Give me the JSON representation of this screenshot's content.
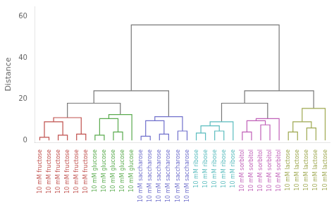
{
  "chart_data": {
    "type": "dendrogram",
    "ylabel": "Distance",
    "categories": [
      "10 mM fructose",
      "10 mM fructose",
      "10 mM fructose",
      "10 mM fructose",
      "10 mM fructose",
      "10 mM fructose",
      "10 mM glucose",
      "10 mM glucose",
      "10 mM glucose",
      "10 mM glucose",
      "10 mM glucose",
      "10 mM saccharose",
      "10 mM saccharose",
      "10 mM saccharose",
      "10 mM saccharose",
      "10 mM saccharose",
      "10 mM saccharose",
      "10 mM ribose",
      "10 mM ribose",
      "10 mM ribose",
      "10 mM ribose",
      "10 mM ribose",
      "10 mM sorbitol",
      "10 mM sorbitol",
      "10 mM sorbitol",
      "10 mM sorbitol",
      "10 mM sorbitol",
      "10 mM lactose",
      "10 mM lactose",
      "10 mM lactose",
      "10 mM lactose",
      "10 mM lactose"
    ],
    "colors": [
      "#c0504d",
      "#c0504d",
      "#c0504d",
      "#c0504d",
      "#c0504d",
      "#c0504d",
      "#5aab4e",
      "#5aab4e",
      "#5aab4e",
      "#5aab4e",
      "#5aab4e",
      "#7070cc",
      "#7070cc",
      "#7070cc",
      "#7070cc",
      "#7070cc",
      "#7070cc",
      "#5abcbe",
      "#5abcbe",
      "#5abcbe",
      "#5abcbe",
      "#5abcbe",
      "#c060b8",
      "#c060b8",
      "#c060b8",
      "#c060b8",
      "#c060b8",
      "#9ea850",
      "#9ea850",
      "#9ea850",
      "#9ea850",
      "#9ea850"
    ],
    "merges": [
      {
        "pair": [
          0,
          1
        ],
        "height": 1.5,
        "color": "#c0504d"
      },
      {
        "pair": [
          2,
          3
        ],
        "height": 2.5,
        "color": "#c0504d"
      },
      {
        "pair": [
          4,
          5
        ],
        "height": 3.0,
        "color": "#c0504d"
      },
      {
        "pair": [
          32,
          33
        ],
        "height": 9.0,
        "color": "#c0504d"
      },
      {
        "pair": [
          35,
          34
        ],
        "height": 11.0,
        "color": "#c0504d"
      },
      {
        "pair": [
          6,
          7
        ],
        "height": 2.5,
        "color": "#5aab4e"
      },
      {
        "pair": [
          8,
          9
        ],
        "height": 4.0,
        "color": "#5aab4e"
      },
      {
        "pair": [
          37,
          38
        ],
        "height": 10.5,
        "color": "#5aab4e"
      },
      {
        "pair": [
          39,
          10
        ],
        "height": 12.5,
        "color": "#5aab4e"
      },
      {
        "pair": [
          36,
          40
        ],
        "height": 18.0,
        "color": "#787878"
      },
      {
        "pair": [
          11,
          12
        ],
        "height": 2.0,
        "color": "#7070cc"
      },
      {
        "pair": [
          13,
          14
        ],
        "height": 3.0,
        "color": "#7070cc"
      },
      {
        "pair": [
          15,
          16
        ],
        "height": 4.5,
        "color": "#7070cc"
      },
      {
        "pair": [
          42,
          43
        ],
        "height": 9.5,
        "color": "#7070cc"
      },
      {
        "pair": [
          45,
          44
        ],
        "height": 11.5,
        "color": "#7070cc"
      },
      {
        "pair": [
          41,
          46
        ],
        "height": 24.0,
        "color": "#787878"
      },
      {
        "pair": [
          17,
          18
        ],
        "height": 3.5,
        "color": "#5abcbe"
      },
      {
        "pair": [
          19,
          20
        ],
        "height": 4.5,
        "color": "#5abcbe"
      },
      {
        "pair": [
          48,
          49
        ],
        "height": 7.0,
        "color": "#5abcbe"
      },
      {
        "pair": [
          50,
          21
        ],
        "height": 9.0,
        "color": "#5abcbe"
      },
      {
        "pair": [
          22,
          23
        ],
        "height": 4.0,
        "color": "#c060b8"
      },
      {
        "pair": [
          24,
          25
        ],
        "height": 7.5,
        "color": "#c060b8"
      },
      {
        "pair": [
          52,
          53
        ],
        "height": 9.5,
        "color": "#c060b8"
      },
      {
        "pair": [
          54,
          26
        ],
        "height": 10.5,
        "color": "#c060b8"
      },
      {
        "pair": [
          51,
          55
        ],
        "height": 18.0,
        "color": "#787878"
      },
      {
        "pair": [
          27,
          28
        ],
        "height": 4.0,
        "color": "#9ea850"
      },
      {
        "pair": [
          29,
          30
        ],
        "height": 6.0,
        "color": "#9ea850"
      },
      {
        "pair": [
          57,
          58
        ],
        "height": 9.0,
        "color": "#9ea850"
      },
      {
        "pair": [
          59,
          31
        ],
        "height": 15.5,
        "color": "#9ea850"
      },
      {
        "pair": [
          56,
          60
        ],
        "height": 24.0,
        "color": "#787878"
      },
      {
        "pair": [
          47,
          61
        ],
        "height": 56.0,
        "color": "#787878"
      }
    ],
    "ylim": [
      -1,
      65
    ],
    "yticks": [
      0,
      20,
      40,
      60
    ],
    "grid": false
  }
}
